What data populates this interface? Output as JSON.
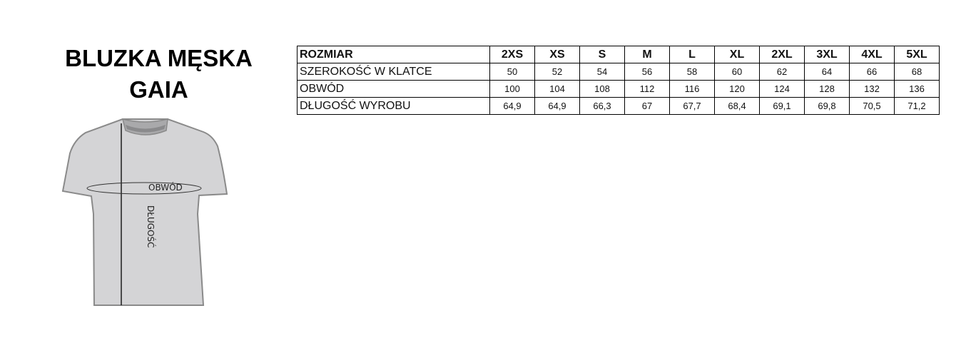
{
  "title": {
    "line1": "BLUZKA MĘSKA",
    "line2": "GAIA"
  },
  "illustration": {
    "chest_label": "OBWÓD",
    "length_label": "DŁUGOŚĆ"
  },
  "table": {
    "header": {
      "label": "ROZMIAR",
      "sizes": [
        "2XS",
        "XS",
        "S",
        "M",
        "L",
        "XL",
        "2XL",
        "3XL",
        "4XL",
        "5XL"
      ]
    },
    "rows": [
      {
        "label": "SZEROKOŚĆ W KLATCE",
        "values": [
          "50",
          "52",
          "54",
          "56",
          "58",
          "60",
          "62",
          "64",
          "66",
          "68"
        ]
      },
      {
        "label": "OBWÓD",
        "values": [
          "100",
          "104",
          "108",
          "112",
          "116",
          "120",
          "124",
          "128",
          "132",
          "136"
        ]
      },
      {
        "label": "DŁUGOŚĆ WYROBU",
        "values": [
          "64,9",
          "64,9",
          "66,3",
          "67",
          "67,7",
          "68,4",
          "69,1",
          "69,8",
          "70,5",
          "71,2"
        ]
      }
    ]
  }
}
